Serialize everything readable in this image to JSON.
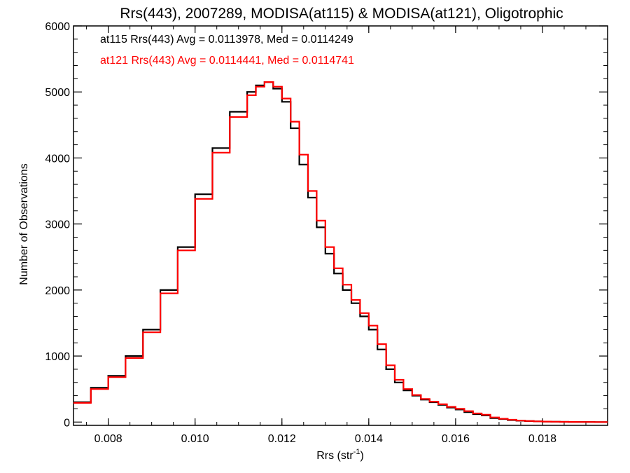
{
  "chart_data": {
    "type": "line",
    "title": "Rrs(443), 2007289, MODISA(at115) & MODISA(at121), Oligotrophic",
    "xlabel": "Rrs (str",
    "xlabel_sup": "-1",
    "xlabel_suffix": ")",
    "ylabel": "Number of Observations",
    "xlim": [
      0.0072,
      0.0195
    ],
    "ylim": [
      -50,
      6000
    ],
    "xticks": [
      0.008,
      0.01,
      0.012,
      0.014,
      0.016,
      0.018
    ],
    "xtick_labels": [
      "0.008",
      "0.010",
      "0.012",
      "0.014",
      "0.016",
      "0.018"
    ],
    "yticks": [
      0,
      1000,
      2000,
      3000,
      4000,
      5000,
      6000
    ],
    "ytick_labels": [
      "0",
      "1000",
      "2000",
      "3000",
      "4000",
      "5000",
      "6000"
    ],
    "grid": false,
    "legend_position": "top-left",
    "annotations": [
      {
        "text": "at115 Rrs(443) Avg = 0.0113978, Med = 0.0114249",
        "color": "#000000"
      },
      {
        "text": "at121 Rrs(443) Avg = 0.0114441, Med = 0.0114741",
        "color": "#ff0000"
      }
    ],
    "series": [
      {
        "color": "#000000",
        "x": [
          0.0072,
          0.0076,
          0.008,
          0.0084,
          0.0088,
          0.0092,
          0.0096,
          0.01,
          0.0104,
          0.0108,
          0.0112,
          0.0114,
          0.0116,
          0.0118,
          0.012,
          0.0122,
          0.0124,
          0.0126,
          0.0128,
          0.013,
          0.0132,
          0.0134,
          0.0136,
          0.0138,
          0.014,
          0.0142,
          0.0144,
          0.0146,
          0.0148,
          0.015,
          0.0152,
          0.0154,
          0.0156,
          0.0158,
          0.016,
          0.0162,
          0.0164,
          0.0166,
          0.0168,
          0.017,
          0.0172,
          0.0174,
          0.0176,
          0.0178,
          0.018,
          0.0182,
          0.0184,
          0.0186,
          0.0188,
          0.019,
          0.0192,
          0.0195
        ],
        "y": [
          300,
          520,
          700,
          1000,
          1400,
          2000,
          2650,
          3450,
          4150,
          4700,
          5000,
          5100,
          5150,
          5050,
          4850,
          4450,
          3900,
          3400,
          2950,
          2550,
          2250,
          2000,
          1800,
          1600,
          1400,
          1100,
          800,
          600,
          480,
          400,
          340,
          300,
          260,
          220,
          190,
          150,
          120,
          100,
          60,
          45,
          30,
          20,
          15,
          10,
          6,
          4,
          3,
          2,
          1,
          1,
          0,
          0
        ]
      },
      {
        "color": "#ff0000",
        "x": [
          0.0072,
          0.0076,
          0.008,
          0.0084,
          0.0088,
          0.0092,
          0.0096,
          0.01,
          0.0104,
          0.0108,
          0.0112,
          0.0114,
          0.0116,
          0.0118,
          0.012,
          0.0122,
          0.0124,
          0.0126,
          0.0128,
          0.013,
          0.0132,
          0.0134,
          0.0136,
          0.0138,
          0.014,
          0.0142,
          0.0144,
          0.0146,
          0.0148,
          0.015,
          0.0152,
          0.0154,
          0.0156,
          0.0158,
          0.016,
          0.0162,
          0.0164,
          0.0166,
          0.0168,
          0.017,
          0.0172,
          0.0174,
          0.0176,
          0.0178,
          0.018,
          0.0182,
          0.0184,
          0.0186,
          0.0188,
          0.019,
          0.0192,
          0.0195
        ],
        "y": [
          290,
          500,
          680,
          970,
          1360,
          1950,
          2600,
          3380,
          4080,
          4620,
          4950,
          5080,
          5150,
          5080,
          4900,
          4550,
          4050,
          3500,
          3050,
          2650,
          2330,
          2080,
          1850,
          1650,
          1460,
          1180,
          860,
          640,
          500,
          410,
          350,
          310,
          270,
          230,
          200,
          165,
          130,
          110,
          70,
          50,
          35,
          22,
          16,
          11,
          7,
          5,
          3,
          2,
          1,
          1,
          0,
          0
        ]
      }
    ]
  }
}
